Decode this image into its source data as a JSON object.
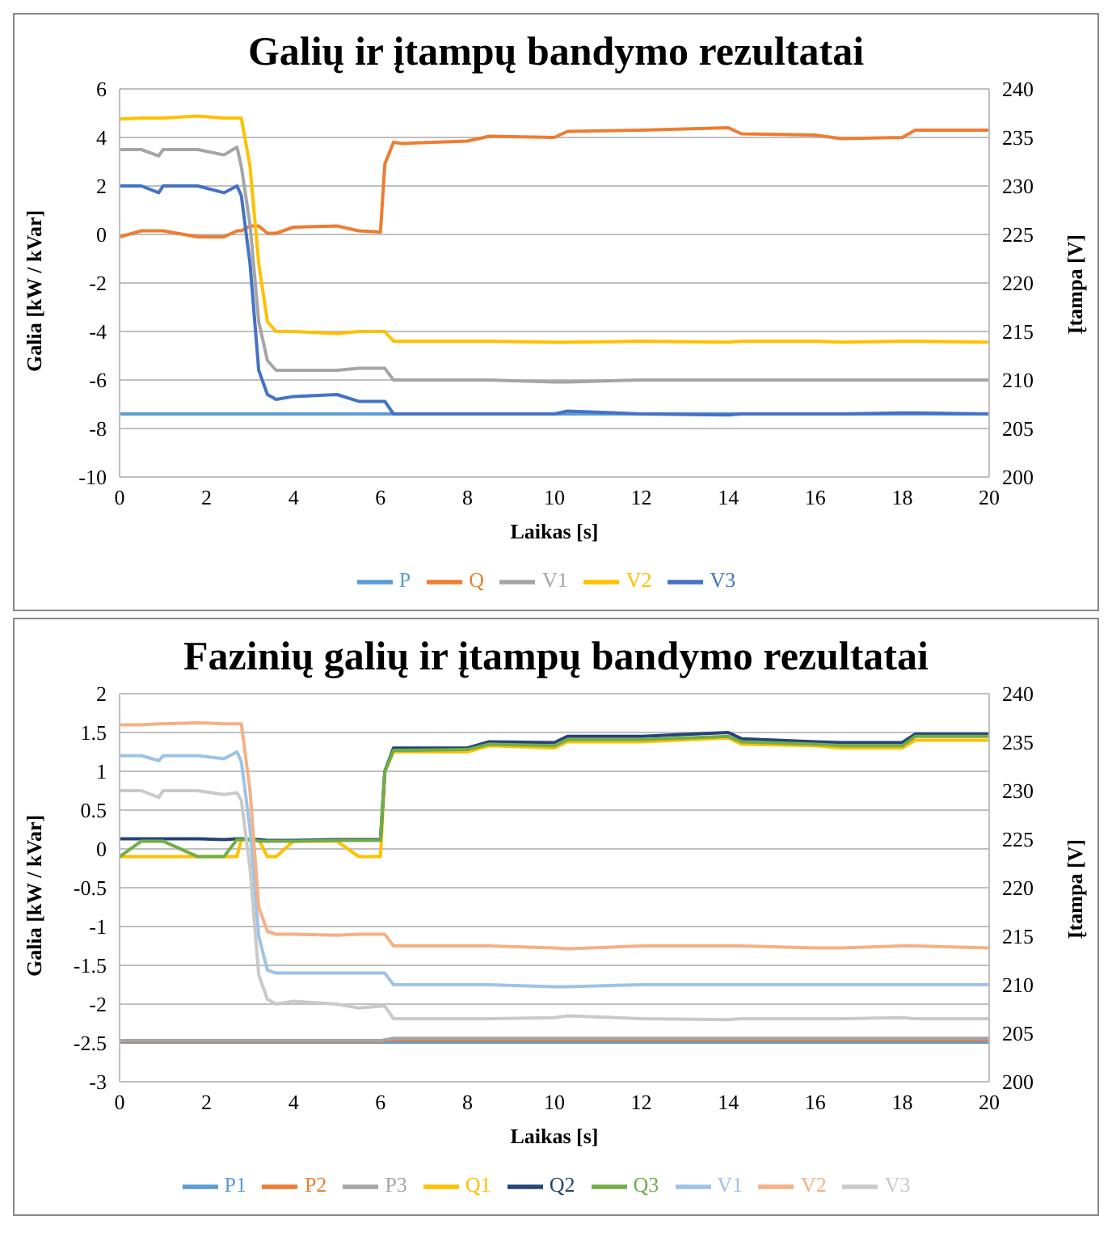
{
  "chart_data": [
    {
      "type": "line",
      "title": "Galių ir įtampų bandymo rezultatai",
      "xlabel": "Laikas [s]",
      "ylabel": "Galia [kW / kVar]",
      "y2label": "Įtampa [V]",
      "x": [
        0,
        0.5,
        0.9,
        1.0,
        1.8,
        2.4,
        2.7,
        2.8,
        3.0,
        3.2,
        3.4,
        3.6,
        4,
        5,
        5.5,
        6,
        6.1,
        6.3,
        6.5,
        8,
        8.5,
        10,
        10.3,
        12,
        14,
        14.3,
        16,
        16.6,
        18,
        18.3,
        20
      ],
      "series": [
        {
          "name": "P",
          "color": "#5b9bd5",
          "values": [
            -7.4,
            -7.4,
            -7.4,
            -7.4,
            -7.4,
            -7.4,
            -7.4,
            -7.4,
            -7.4,
            -7.4,
            -7.4,
            -7.4,
            -7.4,
            -7.4,
            -7.4,
            -7.4,
            -7.4,
            -7.4,
            -7.4,
            -7.4,
            -7.4,
            -7.4,
            -7.4,
            -7.4,
            -7.4,
            -7.4,
            -7.4,
            -7.4,
            -7.4,
            -7.4,
            -7.4
          ]
        },
        {
          "name": "Q",
          "color": "#ed7d31",
          "values": [
            -0.1,
            0.15,
            0.15,
            0.15,
            -0.1,
            -0.1,
            0.15,
            0.15,
            0.35,
            0.35,
            0.05,
            0.05,
            0.3,
            0.35,
            0.15,
            0.1,
            2.9,
            3.8,
            3.75,
            3.85,
            4.05,
            4.0,
            4.25,
            4.3,
            4.4,
            4.15,
            4.1,
            3.95,
            4.0,
            4.3,
            4.3
          ]
        },
        {
          "name": "V1",
          "color": "#a5a5a5",
          "axis": "y2",
          "values": [
            233.75,
            233.75,
            233.1,
            233.75,
            233.75,
            233.2,
            234,
            232,
            226,
            216,
            212,
            211,
            211,
            211,
            211.2,
            211.2,
            211.2,
            210,
            210,
            210,
            210,
            209.8,
            209.8,
            210,
            210,
            210,
            210,
            210,
            210,
            210,
            210
          ]
        },
        {
          "name": "V2",
          "color": "#ffc000",
          "axis": "y2",
          "values": [
            236.9,
            237,
            237,
            237,
            237.2,
            237,
            237,
            237,
            232,
            222,
            216,
            215,
            215,
            214.8,
            215,
            215,
            215,
            214,
            214,
            214,
            214,
            213.9,
            213.9,
            214,
            213.9,
            214,
            214,
            213.9,
            214,
            214,
            213.9
          ]
        },
        {
          "name": "V3",
          "color": "#4472c4",
          "axis": "y2",
          "values": [
            230,
            230,
            229.3,
            230,
            230,
            229.3,
            230,
            229,
            222,
            211,
            208.5,
            208,
            208.3,
            208.5,
            207.8,
            207.8,
            207.8,
            206.5,
            206.5,
            206.5,
            206.5,
            206.5,
            206.8,
            206.5,
            206.4,
            206.5,
            206.5,
            206.5,
            206.6,
            206.6,
            206.5
          ]
        }
      ],
      "xlim": [
        0,
        20
      ],
      "xticks": [
        0,
        2,
        4,
        6,
        8,
        10,
        12,
        14,
        16,
        18,
        20
      ],
      "ylim": [
        -10,
        6
      ],
      "yticks": [
        -10,
        -8,
        -6,
        -4,
        -2,
        0,
        2,
        4,
        6
      ],
      "y2lim": [
        200,
        240
      ],
      "y2ticks": [
        200,
        205,
        210,
        215,
        220,
        225,
        230,
        235,
        240
      ],
      "grid": "y",
      "legend": "bottom",
      "marker": "none",
      "line_style": "solid"
    },
    {
      "type": "line",
      "title": "Fazinių galių ir įtampų bandymo rezultatai",
      "xlabel": "Laikas [s]",
      "ylabel": "Galia [kW / kVar]",
      "y2label": "Įtampa [V]",
      "x": [
        0,
        0.5,
        0.9,
        1.0,
        1.8,
        2.4,
        2.7,
        2.8,
        3.0,
        3.2,
        3.4,
        3.6,
        4,
        5,
        5.5,
        6,
        6.1,
        6.3,
        6.5,
        8,
        8.5,
        10,
        10.3,
        12,
        14,
        14.3,
        16,
        16.6,
        18,
        18.3,
        20
      ],
      "series": [
        {
          "name": "P1",
          "color": "#5b9bd5",
          "values": [
            -2.49,
            -2.49,
            -2.49,
            -2.49,
            -2.49,
            -2.49,
            -2.49,
            -2.49,
            -2.49,
            -2.49,
            -2.49,
            -2.49,
            -2.49,
            -2.49,
            -2.49,
            -2.49,
            -2.49,
            -2.49,
            -2.49,
            -2.49,
            -2.49,
            -2.49,
            -2.49,
            -2.49,
            -2.49,
            -2.49,
            -2.49,
            -2.49,
            -2.49,
            -2.49,
            -2.49
          ]
        },
        {
          "name": "P2",
          "color": "#ed7d31",
          "values": [
            -2.48,
            -2.48,
            -2.48,
            -2.48,
            -2.48,
            -2.48,
            -2.48,
            -2.48,
            -2.48,
            -2.48,
            -2.48,
            -2.48,
            -2.48,
            -2.48,
            -2.48,
            -2.48,
            -2.47,
            -2.46,
            -2.46,
            -2.46,
            -2.46,
            -2.46,
            -2.46,
            -2.46,
            -2.46,
            -2.46,
            -2.46,
            -2.46,
            -2.46,
            -2.46,
            -2.46
          ]
        },
        {
          "name": "P3",
          "color": "#a5a5a5",
          "values": [
            -2.47,
            -2.47,
            -2.47,
            -2.47,
            -2.47,
            -2.47,
            -2.47,
            -2.47,
            -2.47,
            -2.47,
            -2.47,
            -2.47,
            -2.47,
            -2.47,
            -2.47,
            -2.47,
            -2.46,
            -2.44,
            -2.44,
            -2.44,
            -2.44,
            -2.44,
            -2.44,
            -2.44,
            -2.44,
            -2.44,
            -2.44,
            -2.44,
            -2.44,
            -2.44,
            -2.44
          ]
        },
        {
          "name": "Q1",
          "color": "#ffc000",
          "values": [
            -0.1,
            -0.1,
            -0.1,
            -0.1,
            -0.1,
            -0.1,
            -0.1,
            0.12,
            0.12,
            0.12,
            -0.1,
            -0.1,
            0.1,
            0.1,
            -0.1,
            -0.1,
            1.0,
            1.25,
            1.25,
            1.25,
            1.33,
            1.3,
            1.38,
            1.38,
            1.43,
            1.35,
            1.33,
            1.3,
            1.3,
            1.4,
            1.4
          ]
        },
        {
          "name": "Q2",
          "color": "#264478",
          "values": [
            0.13,
            0.13,
            0.13,
            0.13,
            0.13,
            0.12,
            0.13,
            0.13,
            0.12,
            0.12,
            0.11,
            0.11,
            0.11,
            0.12,
            0.12,
            0.12,
            1.0,
            1.3,
            1.3,
            1.3,
            1.38,
            1.37,
            1.45,
            1.45,
            1.5,
            1.42,
            1.38,
            1.37,
            1.37,
            1.48,
            1.48
          ]
        },
        {
          "name": "Q3",
          "color": "#70ad47",
          "values": [
            -0.1,
            0.1,
            0.1,
            0.1,
            -0.1,
            -0.1,
            0.12,
            0.12,
            0.12,
            0.1,
            0.1,
            0.1,
            0.1,
            0.11,
            0.11,
            0.11,
            1.0,
            1.27,
            1.27,
            1.28,
            1.35,
            1.33,
            1.41,
            1.41,
            1.45,
            1.38,
            1.35,
            1.33,
            1.33,
            1.45,
            1.45
          ]
        },
        {
          "name": "V1",
          "color": "#9dc3e6",
          "axis": "y2",
          "values": [
            233.6,
            233.6,
            233.1,
            233.6,
            233.6,
            233.3,
            234,
            233,
            226,
            215,
            211.5,
            211.2,
            211.2,
            211.2,
            211.2,
            211.2,
            211.2,
            210,
            210,
            210,
            210,
            209.8,
            209.8,
            210,
            210,
            210,
            210,
            210,
            210,
            210,
            210
          ]
        },
        {
          "name": "V2",
          "color": "#f4b183",
          "axis": "y2",
          "values": [
            236.8,
            236.8,
            236.9,
            236.9,
            237,
            236.9,
            236.9,
            236.9,
            230,
            218,
            215.5,
            215.2,
            215.2,
            215.1,
            215.2,
            215.2,
            215.2,
            214,
            214,
            214,
            214,
            213.8,
            213.7,
            214,
            214,
            214,
            213.8,
            213.8,
            214,
            214,
            213.8
          ]
        },
        {
          "name": "V3",
          "color": "#c9c9c9",
          "axis": "y2",
          "values": [
            230,
            230,
            229.3,
            230,
            230,
            229.6,
            229.8,
            229,
            222,
            211,
            208.5,
            208,
            208.3,
            208,
            207.6,
            207.8,
            207.8,
            206.5,
            206.5,
            206.5,
            206.5,
            206.6,
            206.8,
            206.5,
            206.4,
            206.5,
            206.5,
            206.5,
            206.6,
            206.5,
            206.5
          ]
        }
      ],
      "xlim": [
        0,
        20
      ],
      "xticks": [
        0,
        2,
        4,
        6,
        8,
        10,
        12,
        14,
        16,
        18,
        20
      ],
      "ylim": [
        -3,
        2
      ],
      "yticks": [
        -3,
        -2.5,
        -2,
        -1.5,
        -1,
        -0.5,
        0,
        0.5,
        1,
        1.5,
        2
      ],
      "y2lim": [
        200,
        240
      ],
      "y2ticks": [
        200,
        205,
        210,
        215,
        220,
        225,
        230,
        235,
        240
      ],
      "grid": "y",
      "legend": "bottom",
      "marker": "none",
      "line_style": "solid"
    }
  ]
}
